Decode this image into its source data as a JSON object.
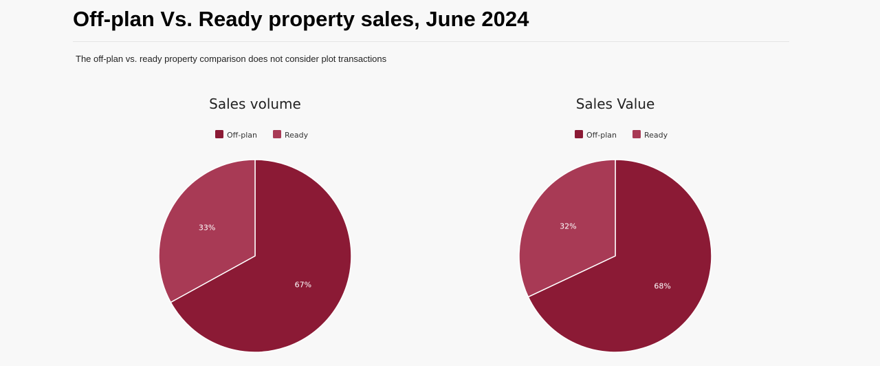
{
  "page": {
    "title": "Off-plan Vs. Ready property sales, June 2024",
    "subtitle": "The off-plan vs. ready property comparison does not consider plot transactions"
  },
  "colors": {
    "off_plan": "#8b1a35",
    "ready": "#a83a55",
    "separator": "#ffffff"
  },
  "chart_data": [
    {
      "type": "pie",
      "title": "Sales volume",
      "legend": "top",
      "categories": [
        "Off-plan",
        "Ready"
      ],
      "values": [
        67,
        33
      ],
      "labels": [
        "67%",
        "33%"
      ]
    },
    {
      "type": "pie",
      "title": "Sales Value",
      "legend": "top",
      "categories": [
        "Off-plan",
        "Ready"
      ],
      "values": [
        68,
        32
      ],
      "labels": [
        "68%",
        "32%"
      ]
    }
  ]
}
